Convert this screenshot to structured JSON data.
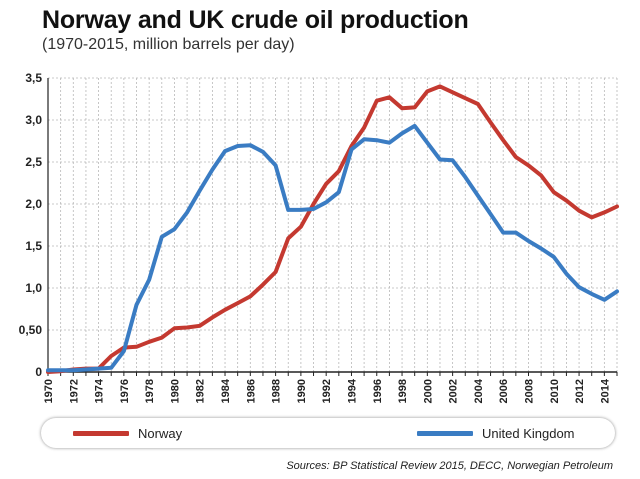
{
  "header": {
    "title": "Norway and UK crude oil production",
    "subtitle": "(1970-2015, million barrels per day)"
  },
  "source": "Sources: BP Statistical Review 2015, DECC, Norwegian Petroleum",
  "colors": {
    "norway": "#c43930",
    "uk": "#3a7cc3",
    "grid": "#b8b8b8",
    "axis": "#222222"
  },
  "chart_data": {
    "type": "line",
    "title": "Norway and UK crude oil production",
    "subtitle": "(1970-2015, million barrels per day)",
    "xlim": [
      1970,
      2015
    ],
    "ylim": [
      0,
      3.5
    ],
    "x_ticks": [
      "1970",
      "1972",
      "1974",
      "1976",
      "1978",
      "1980",
      "1982",
      "1984",
      "1986",
      "1988",
      "1990",
      "1992",
      "1994",
      "1996",
      "1998",
      "2000",
      "2002",
      "2004",
      "2006",
      "2008",
      "2010",
      "2012",
      "2014"
    ],
    "y_ticks": [
      "0",
      "0,50",
      "1,0",
      "1,5",
      "2,0",
      "2,5",
      "3,0",
      "3,5"
    ],
    "y_tick_values": [
      0,
      0.5,
      1.0,
      1.5,
      2.0,
      2.5,
      3.0,
      3.5
    ],
    "grid": true,
    "legend_position": "bottom",
    "x": [
      1970,
      1971,
      1972,
      1973,
      1974,
      1975,
      1976,
      1977,
      1978,
      1979,
      1980,
      1981,
      1982,
      1983,
      1984,
      1985,
      1986,
      1987,
      1988,
      1989,
      1990,
      1991,
      1992,
      1993,
      1994,
      1995,
      1996,
      1997,
      1998,
      1999,
      2000,
      2001,
      2002,
      2003,
      2004,
      2005,
      2006,
      2007,
      2008,
      2009,
      2010,
      2011,
      2012,
      2013,
      2014,
      2015
    ],
    "series": [
      {
        "name": "Norway",
        "color": "#c43930",
        "values": [
          0.0,
          0.01,
          0.03,
          0.04,
          0.04,
          0.19,
          0.29,
          0.3,
          0.36,
          0.41,
          0.52,
          0.53,
          0.55,
          0.65,
          0.74,
          0.82,
          0.9,
          1.04,
          1.19,
          1.59,
          1.73,
          2.0,
          2.24,
          2.39,
          2.69,
          2.91,
          3.23,
          3.27,
          3.14,
          3.15,
          3.34,
          3.4,
          3.33,
          3.26,
          3.19,
          2.97,
          2.76,
          2.56,
          2.46,
          2.34,
          2.14,
          2.04,
          1.92,
          1.84,
          1.9,
          1.97
        ]
      },
      {
        "name": "United Kingdom",
        "color": "#3a7cc3",
        "values": [
          0.02,
          0.02,
          0.02,
          0.03,
          0.04,
          0.05,
          0.25,
          0.8,
          1.1,
          1.61,
          1.7,
          1.9,
          2.16,
          2.41,
          2.63,
          2.69,
          2.7,
          2.62,
          2.46,
          1.93,
          1.93,
          1.94,
          2.02,
          2.14,
          2.65,
          2.77,
          2.76,
          2.73,
          2.84,
          2.93,
          2.73,
          2.53,
          2.52,
          2.32,
          2.1,
          1.88,
          1.66,
          1.66,
          1.56,
          1.47,
          1.37,
          1.17,
          1.01,
          0.93,
          0.86,
          0.96
        ]
      }
    ]
  }
}
